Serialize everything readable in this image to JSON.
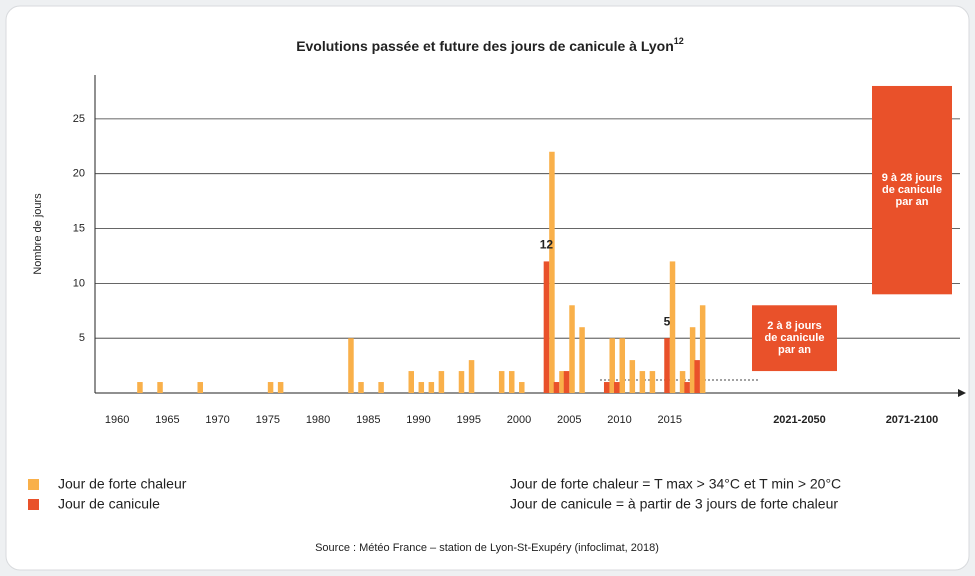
{
  "chart_data": {
    "type": "bar",
    "title": "Evolutions passée et future des jours de canicule à Lyon",
    "title_note": "12",
    "y_label": "Nombre de jours",
    "x": [
      1962,
      1964,
      1968,
      1975,
      1976,
      1983,
      1984,
      1986,
      1989,
      1990,
      1991,
      1992,
      1994,
      1995,
      1998,
      1999,
      2000,
      2003,
      2004,
      2005,
      2006,
      2009,
      2010,
      2011,
      2012,
      2013,
      2015,
      2016,
      2017,
      2018
    ],
    "series": [
      {
        "name": "Jour de forte chaleur",
        "color": "#f9b04a",
        "values": [
          1,
          1,
          1,
          1,
          1,
          5,
          1,
          1,
          2,
          1,
          1,
          2,
          2,
          3,
          2,
          2,
          1,
          22,
          2,
          8,
          6,
          5,
          5,
          3,
          2,
          2,
          12,
          2,
          6,
          8
        ]
      },
      {
        "name": "Jour de canicule",
        "color": "#e9512a",
        "values": [
          0,
          0,
          0,
          0,
          0,
          0,
          0,
          0,
          0,
          0,
          0,
          0,
          0,
          0,
          0,
          0,
          0,
          12,
          1,
          2,
          0,
          1,
          1,
          0,
          0,
          0,
          5,
          0,
          1,
          3
        ]
      }
    ],
    "labeled_years": [
      2003,
      2015
    ],
    "xlim": [
      1958,
      2020
    ],
    "xticks": [
      1960,
      1965,
      1970,
      1975,
      1980,
      1985,
      1990,
      1995,
      2000,
      2005,
      2010,
      2015
    ],
    "ylim": [
      0,
      29
    ],
    "yticks": [
      5,
      10,
      15,
      20,
      25
    ],
    "grid": true,
    "projections": [
      {
        "period": "2021-2050",
        "low": 2,
        "high": 8,
        "lines": [
          "2 à 8 jours",
          "de canicule",
          "par an"
        ]
      },
      {
        "period": "2071-2100",
        "low": 9,
        "high": 28,
        "lines": [
          "9 à 28 jours",
          "de canicule",
          "par an"
        ]
      }
    ],
    "definitions": [
      "Jour de forte chaleur = T max > 34°C et T min > 20°C",
      "Jour de canicule = à partir de 3 jours de forte chaleur"
    ],
    "source": "Source : Météo France – station de Lyon-St-Exupéry (infoclimat, 2018)"
  }
}
